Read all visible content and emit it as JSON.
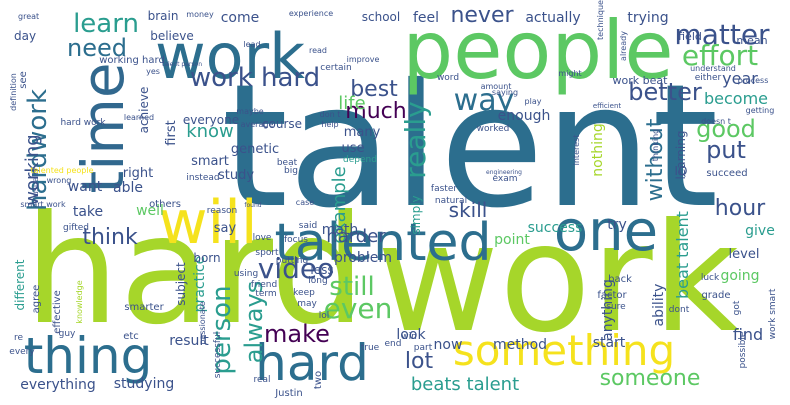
{
  "palette": {
    "yellow": "#f5e21d",
    "lime": "#a6d62a",
    "green": "#5cc863",
    "teal": "#22a884",
    "cyan": "#2a9d8f",
    "steel": "#2c6e8e",
    "blue": "#31688e",
    "indigo": "#3b528b",
    "purple": "#440154"
  },
  "words": [
    "talent",
    "hard",
    "work",
    "people",
    "time",
    "work",
    "will",
    "talented",
    "one",
    "thing",
    "hard",
    "something",
    "work hard",
    "way",
    "much",
    "best",
    "matter",
    "effort",
    "learn",
    "need",
    "never",
    "hardwork",
    "better",
    "really",
    "person",
    "video",
    "even",
    "still",
    "make",
    "always",
    "lot",
    "beats talent",
    "someone",
    "think",
    "good",
    "put",
    "hour",
    "know",
    "skill",
    "without",
    "example",
    "life",
    "working",
    "year",
    "become",
    "enough",
    "beat talent",
    "harder",
    "success",
    "point",
    "problem",
    "try",
    "give",
    "level",
    "going",
    "find",
    "now",
    "method",
    "start",
    "look",
    "result",
    "practice",
    "studying",
    "everything",
    "different",
    "subject",
    "born",
    "ability",
    "anything",
    "nothing",
    "learning",
    "world",
    "less",
    "say",
    "take",
    "well",
    "want",
    "able",
    "right",
    "first",
    "smart",
    "study",
    "genetic",
    "math",
    "use",
    "many",
    "simply",
    "depend",
    "feel",
    "actually",
    "trying",
    "come",
    "brain",
    "school",
    "believe",
    "day",
    "achieve",
    "everyone",
    "course",
    "certain",
    "work beat",
    "mean",
    "field",
    "understand",
    "either",
    "IQ",
    "succeed",
    "grade",
    "back",
    "luck",
    "factor",
    "sure",
    "dont",
    "got",
    "possible",
    "work smart",
    "agree",
    "effective",
    "guy",
    "etc",
    "every",
    "successful",
    "real",
    "Justin",
    "two",
    "end",
    "win",
    "part",
    "true",
    "keep",
    "may",
    "lol",
    "long",
    "friend",
    "term",
    "using",
    "smarter",
    "sport",
    "love",
    "focus",
    "said",
    "reason",
    "others",
    "instead",
    "big",
    "beat",
    "interest",
    "thinking",
    "exam",
    "faster",
    "natural",
    "worked",
    "doesn t",
    "maybe",
    "average",
    "don t",
    "help",
    "getting",
    "process",
    "might",
    "amount",
    "play",
    "saying",
    "word",
    "improve",
    "read",
    "lead",
    "experience",
    "money",
    "great",
    "already",
    "technique",
    "definition",
    "gifted",
    "usually",
    "wrong",
    "yes",
    "learned",
    "working hard",
    "talented people",
    "efficient",
    "engineering",
    "smart work",
    "found",
    "hard work",
    "case",
    "see",
    "re",
    "knowledge",
    "passionate",
    "talent person",
    "putting"
  ]
}
